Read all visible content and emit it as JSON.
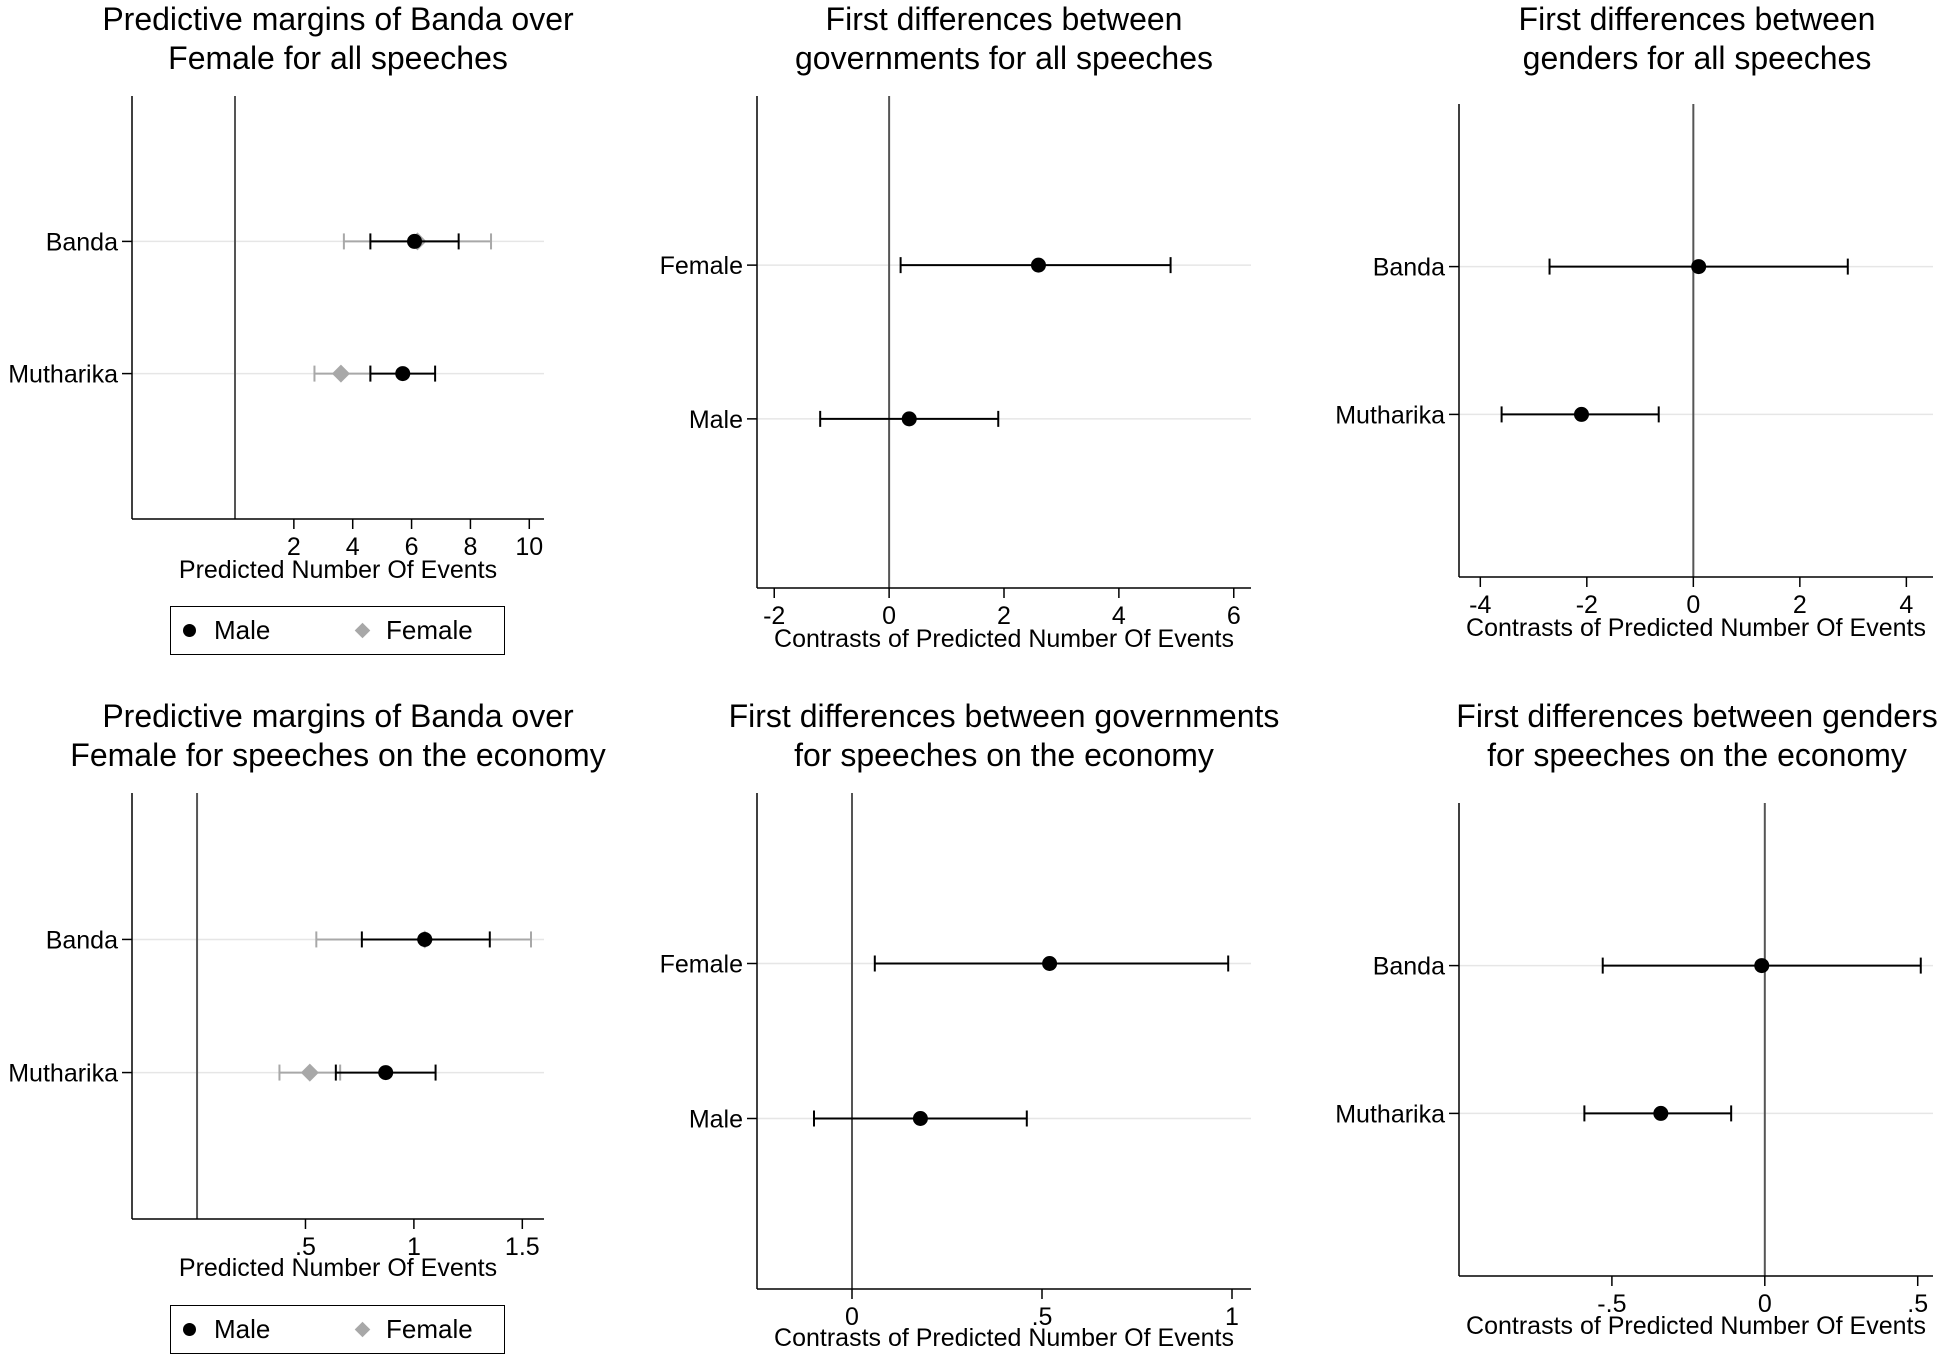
{
  "colors": {
    "male": "#000000",
    "female": "#a8a8a8",
    "gridline": "#e6e6e6",
    "axis": "#000000",
    "refline": "#555555"
  },
  "legend": {
    "male_label": "Male",
    "female_label": "Female",
    "male_icon": "filled-circle-icon",
    "female_icon": "diamond-icon"
  },
  "chart_data": [
    {
      "id": "p1",
      "type": "scatter",
      "title_lines": [
        "Predictive margins of Banda over",
        "Female for all speeches"
      ],
      "xlabel": "Predicted Number Of Events",
      "xlim": [
        -3.5,
        10.5
      ],
      "ref_x": 0,
      "ticks": [
        2,
        4,
        6,
        8,
        10
      ],
      "tick_labels": [
        "2",
        "4",
        "6",
        "8",
        "10"
      ],
      "categories": [
        "Banda",
        "Mutharika"
      ],
      "ylim": [
        0,
        3.2
      ],
      "cat_y": [
        2.1,
        1.1
      ],
      "legend": true,
      "series": [
        {
          "name": "Female",
          "marker": "diamond",
          "color": "#a8a8a8",
          "points": [
            {
              "cat": "Banda",
              "est": 6.2,
              "lo": 3.7,
              "hi": 8.7
            },
            {
              "cat": "Mutharika",
              "est": 3.6,
              "lo": 2.7,
              "hi": 4.6
            }
          ]
        },
        {
          "name": "Male",
          "marker": "circle",
          "color": "#000000",
          "points": [
            {
              "cat": "Banda",
              "est": 6.1,
              "lo": 4.6,
              "hi": 7.6
            },
            {
              "cat": "Mutharika",
              "est": 5.7,
              "lo": 4.6,
              "hi": 6.8
            }
          ]
        }
      ]
    },
    {
      "id": "p2",
      "type": "scatter",
      "title_lines": [
        "First differences between",
        "governments for all speeches"
      ],
      "xlabel": "Contrasts of Predicted Number Of Events",
      "xlim": [
        -2.3,
        6.3
      ],
      "ref_x": 0,
      "ticks": [
        -2,
        0,
        2,
        4,
        6
      ],
      "tick_labels": [
        "-2",
        "0",
        "2",
        "4",
        "6"
      ],
      "categories": [
        "Female",
        "Male"
      ],
      "ylim": [
        0,
        3.2
      ],
      "cat_y": [
        2.1,
        1.1
      ],
      "legend": false,
      "series": [
        {
          "name": "Contrast",
          "marker": "circle",
          "color": "#000000",
          "points": [
            {
              "cat": "Female",
              "est": 2.6,
              "lo": 0.2,
              "hi": 4.9
            },
            {
              "cat": "Male",
              "est": 0.35,
              "lo": -1.2,
              "hi": 1.9
            }
          ]
        }
      ]
    },
    {
      "id": "p3",
      "type": "scatter",
      "title_lines": [
        "First differences between",
        "genders for all speeches"
      ],
      "xlabel": "Contrasts of Predicted Number Of Events",
      "xlim": [
        -4.4,
        4.5
      ],
      "ref_x": 0,
      "ticks": [
        -4,
        -2,
        0,
        2,
        4
      ],
      "tick_labels": [
        "-4",
        "-2",
        "0",
        "2",
        "4"
      ],
      "categories": [
        "Banda",
        "Mutharika"
      ],
      "ylim": [
        0,
        3.2
      ],
      "cat_y": [
        2.1,
        1.1
      ],
      "legend": false,
      "series": [
        {
          "name": "Contrast",
          "marker": "circle",
          "color": "#000000",
          "points": [
            {
              "cat": "Banda",
              "est": 0.1,
              "lo": -2.7,
              "hi": 2.9
            },
            {
              "cat": "Mutharika",
              "est": -2.1,
              "lo": -3.6,
              "hi": -0.65
            }
          ]
        }
      ]
    },
    {
      "id": "p4",
      "type": "scatter",
      "title_lines": [
        "Predictive margins of Banda over",
        "Female for speeches on the economy"
      ],
      "xlabel": "Predicted Number Of Events",
      "xlim": [
        -0.3,
        1.6
      ],
      "ref_x": 0,
      "ticks": [
        0.5,
        1,
        1.5
      ],
      "tick_labels": [
        ".5",
        "1",
        "1.5"
      ],
      "categories": [
        "Banda",
        "Mutharika"
      ],
      "ylim": [
        0,
        3.2
      ],
      "cat_y": [
        2.1,
        1.1
      ],
      "legend": true,
      "series": [
        {
          "name": "Female",
          "marker": "diamond",
          "color": "#a8a8a8",
          "points": [
            {
              "cat": "Banda",
              "est": 1.05,
              "lo": 0.55,
              "hi": 1.54
            },
            {
              "cat": "Mutharika",
              "est": 0.52,
              "lo": 0.38,
              "hi": 0.66
            }
          ]
        },
        {
          "name": "Male",
          "marker": "circle",
          "color": "#000000",
          "points": [
            {
              "cat": "Banda",
              "est": 1.05,
              "lo": 0.76,
              "hi": 1.35
            },
            {
              "cat": "Mutharika",
              "est": 0.87,
              "lo": 0.64,
              "hi": 1.1
            }
          ]
        }
      ]
    },
    {
      "id": "p5",
      "type": "scatter",
      "title_lines": [
        "First differences between governments",
        "for speeches on the economy"
      ],
      "xlabel": "Contrasts of Predicted Number Of Events",
      "xlim": [
        -0.25,
        1.05
      ],
      "ref_x": 0,
      "ticks": [
        0,
        0.5,
        1
      ],
      "tick_labels": [
        "0",
        ".5",
        "1"
      ],
      "categories": [
        "Female",
        "Male"
      ],
      "ylim": [
        0,
        3.2
      ],
      "cat_y": [
        2.1,
        1.1
      ],
      "legend": false,
      "series": [
        {
          "name": "Contrast",
          "marker": "circle",
          "color": "#000000",
          "points": [
            {
              "cat": "Female",
              "est": 0.52,
              "lo": 0.06,
              "hi": 0.99
            },
            {
              "cat": "Male",
              "est": 0.18,
              "lo": -0.1,
              "hi": 0.46
            }
          ]
        }
      ]
    },
    {
      "id": "p6",
      "type": "scatter",
      "title_lines": [
        "First differences between genders",
        "for speeches on the economy"
      ],
      "xlabel": "Contrasts of Predicted Number Of Events",
      "xlim": [
        -1.0,
        0.55
      ],
      "ref_x": 0,
      "ticks": [
        -0.5,
        0,
        0.5
      ],
      "tick_labels": [
        "-.5",
        "0",
        ".5"
      ],
      "categories": [
        "Banda",
        "Mutharika"
      ],
      "ylim": [
        0,
        3.2
      ],
      "cat_y": [
        2.1,
        1.1
      ],
      "legend": false,
      "series": [
        {
          "name": "Contrast",
          "marker": "circle",
          "color": "#000000",
          "points": [
            {
              "cat": "Banda",
              "est": -0.01,
              "lo": -0.53,
              "hi": 0.51
            },
            {
              "cat": "Mutharika",
              "est": -0.34,
              "lo": -0.59,
              "hi": -0.11
            }
          ]
        }
      ]
    }
  ]
}
